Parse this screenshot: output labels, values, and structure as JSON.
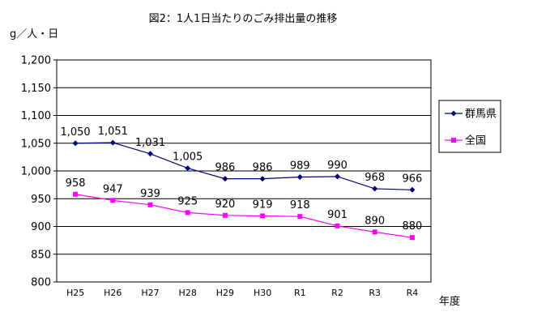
{
  "chart_data": {
    "type": "line",
    "title": "図2：1人1日当たりのごみ排出量の推移",
    "ylabel": "g／人・日",
    "xlabel": "年度",
    "categories": [
      "H25",
      "H26",
      "H27",
      "H28",
      "H29",
      "H30",
      "R1",
      "R2",
      "R3",
      "R4"
    ],
    "ylim": [
      800,
      1200
    ],
    "yticks": [
      800,
      850,
      900,
      950,
      1000,
      1050,
      1100,
      1150,
      1200
    ],
    "ytick_labels": [
      "800",
      "850",
      "900",
      "950",
      "1,000",
      "1,050",
      "1,100",
      "1,150",
      "1,200"
    ],
    "grid": true,
    "legend_position": "right",
    "series": [
      {
        "name": "群馬県",
        "color": "#000080",
        "marker": "diamond",
        "values": [
          1050,
          1051,
          1031,
          1005,
          986,
          986,
          989,
          990,
          968,
          966
        ],
        "labels": [
          "1,050",
          "1,051",
          "1,031",
          "1,005",
          "986",
          "986",
          "989",
          "990",
          "968",
          "966"
        ]
      },
      {
        "name": "全国",
        "color": "#ff00ff",
        "marker": "square",
        "values": [
          958,
          947,
          939,
          925,
          920,
          919,
          918,
          901,
          890,
          880
        ],
        "labels": [
          "958",
          "947",
          "939",
          "925",
          "920",
          "919",
          "918",
          "901",
          "890",
          "880"
        ]
      }
    ]
  }
}
